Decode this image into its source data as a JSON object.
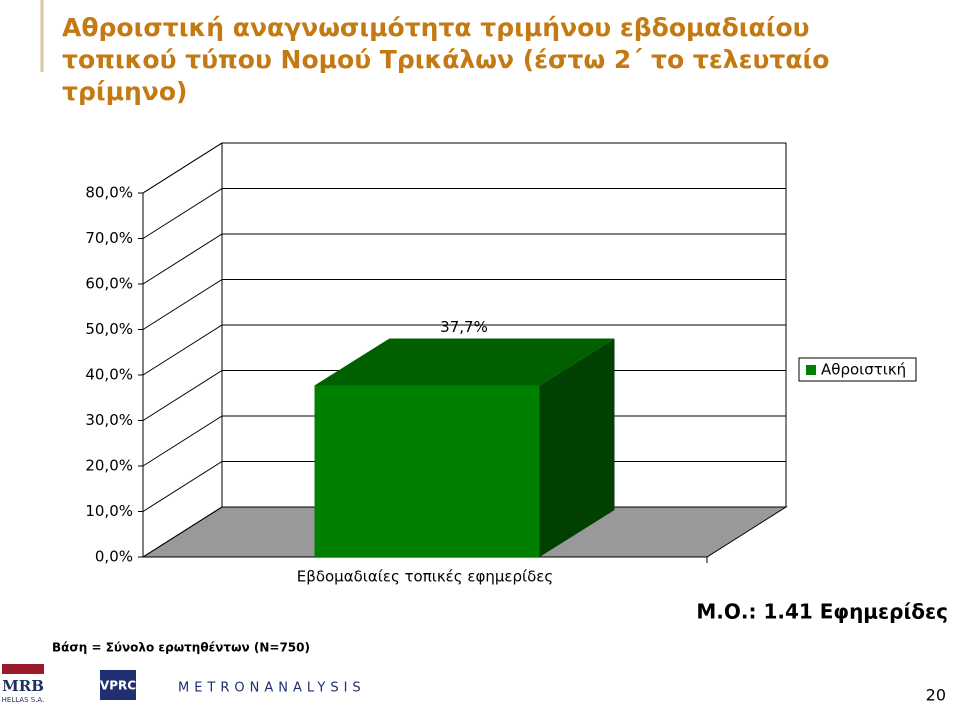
{
  "chart_data": {
    "type": "bar3d",
    "title": "Αθροιστική αναγνωσιμότητα τριμήνου εβδομαδιαίου τοπικού τύπου Νομού Τρικάλων (έστω 2΄ το τελευταίο τρίμηνο)",
    "categories": [
      "Εβδομαδιαίες τοπικές εφημερίδες"
    ],
    "series": [
      {
        "name": "Αθροιστική",
        "color": "#008000",
        "values": [
          37.7
        ],
        "value_labels": [
          "37,7%"
        ]
      }
    ],
    "ylim": [
      0,
      80
    ],
    "yticks": [
      {
        "value": 0,
        "label": "0,0%"
      },
      {
        "value": 10,
        "label": "10,0%"
      },
      {
        "value": 20,
        "label": "20,0%"
      },
      {
        "value": 30,
        "label": "30,0%"
      },
      {
        "value": 40,
        "label": "40,0%"
      },
      {
        "value": 50,
        "label": "50,0%"
      },
      {
        "value": 60,
        "label": "60,0%"
      },
      {
        "value": 70,
        "label": "70,0%"
      },
      {
        "value": 80,
        "label": "80,0%"
      }
    ],
    "grid": true,
    "legend": "right",
    "annotations": [
      "Μ.Ο.: 1.41 Εφημερίδες",
      "Βάση = Σύνολο ερωτηθέντων (N=750)"
    ]
  },
  "footer": {
    "logos": [
      "MRB",
      "HELLAS S.A.",
      "VPRC",
      "METRONANALYSIS"
    ],
    "page": "20"
  }
}
